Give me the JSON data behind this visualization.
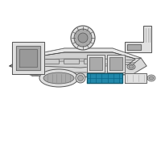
{
  "bg_color": "#ffffff",
  "highlight_color": "#2288aa",
  "line_color": "#444444",
  "part_fill": "#e0e0e0",
  "part_fill2": "#cccccc",
  "part_dark": "#aaaaaa",
  "part_outline": "#555555",
  "dash_fill": "#e8e8e8",
  "dash_fill2": "#d8d8d8",
  "dash_inner": "#d0d0d0"
}
